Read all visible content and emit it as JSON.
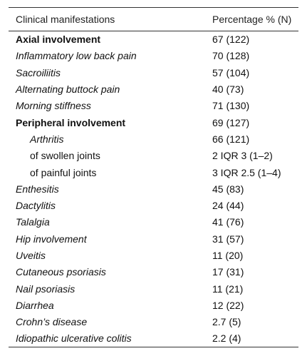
{
  "table": {
    "header": [
      "Clinical manifestations",
      "Percentage % (N)"
    ],
    "rows": [
      [
        "Axial involvement",
        "67 (122)"
      ],
      [
        "Inflammatory low back pain",
        "70 (128)"
      ],
      [
        "Sacroiliitis",
        "57 (104)"
      ],
      [
        "Alternating buttock pain",
        "40 (73)"
      ],
      [
        "Morning stiffness",
        "71 (130)"
      ],
      [
        "Peripheral involvement",
        "69 (127)"
      ],
      [
        "Arthritis",
        "66 (121)"
      ],
      [
        "of swollen joints",
        "2 IQR 3 (1–2)"
      ],
      [
        "of painful joints",
        "3 IQR 2.5 (1–4)"
      ],
      [
        "Enthesitis",
        "45 (83)"
      ],
      [
        "Dactylitis",
        "24 (44)"
      ],
      [
        "Talalgia",
        "41 (76)"
      ],
      [
        "Hip involvement",
        "31 (57)"
      ],
      [
        "Uveitis",
        "11 (20)"
      ],
      [
        "Cutaneous psoriasis",
        "17 (31)"
      ],
      [
        "Nail psoriasis",
        "11 (21)"
      ],
      [
        "Diarrhea",
        "12 (22)"
      ],
      [
        "Crohn’s disease",
        "2.7 (5)"
      ],
      [
        "Idiopathic ulcerative colitis",
        "2.2 (4)"
      ]
    ]
  }
}
